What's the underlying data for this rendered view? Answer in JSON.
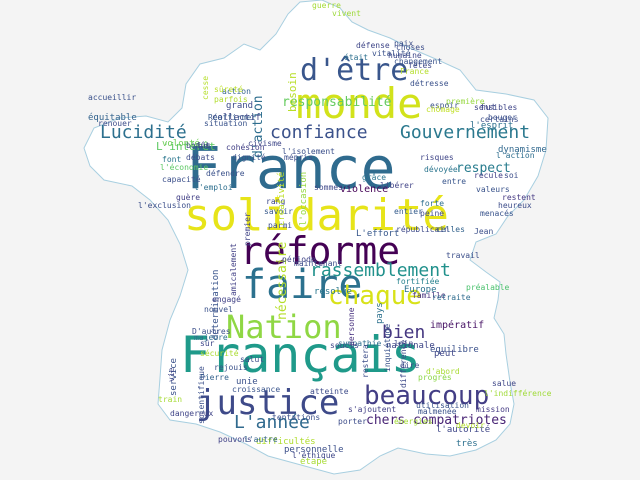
{
  "words": [
    {
      "text": "France",
      "color": "#2f6b8e"
    },
    {
      "text": "solidarité",
      "color": "#e7e419"
    },
    {
      "text": "Français",
      "color": "#1f9a8a"
    },
    {
      "text": "réforme",
      "color": "#440154"
    },
    {
      "text": "monde",
      "color": "#d2e21b"
    },
    {
      "text": "faire",
      "color": "#2c718e"
    },
    {
      "text": "justice",
      "color": "#3e4a89"
    },
    {
      "text": "Nation",
      "color": "#8fd744"
    },
    {
      "text": "d'être",
      "color": "#39568c"
    },
    {
      "text": "chaque",
      "color": "#d8e219"
    },
    {
      "text": "beaucoup",
      "color": "#433e85"
    },
    {
      "text": "rassemblement",
      "color": "#21918c"
    },
    {
      "text": "Gouvernement",
      "color": "#2a788e"
    },
    {
      "text": "confiance",
      "color": "#3b528b"
    },
    {
      "text": "Lucidité",
      "color": "#2d708e"
    },
    {
      "text": "L'année",
      "color": "#306a8e"
    },
    {
      "text": "bien",
      "color": "#453781"
    },
    {
      "text": "chers compatriotes",
      "color": "#482475"
    },
    {
      "text": "responsabilité",
      "color": "#65cb5e"
    },
    {
      "text": "nécessaire",
      "color": "#b5de2b"
    },
    {
      "text": "respect",
      "color": "#287c8e"
    },
    {
      "text": "d'action",
      "color": "#2e6e8e"
    },
    {
      "text": "L'intérêt",
      "color": "#5ec962"
    },
    {
      "text": "collectif",
      "color": "#3f4788"
    },
    {
      "text": "dynamisme",
      "color": "#31688e"
    },
    {
      "text": "l'esprit",
      "color": "#2d708e"
    },
    {
      "text": "équitable",
      "color": "#33638d"
    },
    {
      "text": "accueillir",
      "color": "#3b528b"
    },
    {
      "text": "besoin",
      "color": "#b8de29"
    },
    {
      "text": "grand",
      "color": "#3e4c8a"
    },
    {
      "text": "fut",
      "color": "#3f4889"
    },
    {
      "text": "peine",
      "color": "#3e4a89"
    },
    {
      "text": "fortifiée",
      "color": "#26828e"
    },
    {
      "text": "Europe",
      "color": "#2c728e"
    },
    {
      "text": "préalable",
      "color": "#4ac16d"
    },
    {
      "text": "famille",
      "color": "#46327e"
    },
    {
      "text": "retraite",
      "color": "#2f6c8e"
    },
    {
      "text": "impératif",
      "color": "#471365"
    },
    {
      "text": "équilibre",
      "color": "#3b518b"
    },
    {
      "text": "nationale",
      "color": "#3f4788"
    },
    {
      "text": "pays",
      "color": "#2d718e"
    },
    {
      "text": "soucis",
      "color": "#3e4989"
    },
    {
      "text": "sympathie",
      "color": "#2e6d8e"
    },
    {
      "text": "personne",
      "color": "#46307e"
    },
    {
      "text": "résolue",
      "color": "#2a768e"
    },
    {
      "text": "détermination",
      "color": "#3a548c"
    },
    {
      "text": "violence",
      "color": "#440256"
    },
    {
      "text": "libérer",
      "color": "#414487"
    },
    {
      "text": "sommes",
      "color": "#3f4889"
    },
    {
      "text": "grâce",
      "color": "#2b748e"
    },
    {
      "text": "entre",
      "color": "#39568c"
    },
    {
      "text": "valeurs",
      "color": "#3a538b"
    },
    {
      "text": "recule",
      "color": "#424086"
    },
    {
      "text": "soi",
      "color": "#3d4e8a"
    },
    {
      "text": "entier",
      "color": "#365d8d"
    },
    {
      "text": "forte",
      "color": "#2e6f8e"
    },
    {
      "text": "menacés",
      "color": "#3a548c"
    },
    {
      "text": "restent",
      "color": "#453882"
    },
    {
      "text": "heureux",
      "color": "#3d4d8a"
    },
    {
      "text": "celles",
      "color": "#33638d"
    },
    {
      "text": "républicain",
      "color": "#3e4a89"
    },
    {
      "text": "L'effort",
      "color": "#38588c"
    },
    {
      "text": "travail",
      "color": "#3c4f8a"
    },
    {
      "text": "risques",
      "color": "#404688"
    },
    {
      "text": "dévoyée",
      "color": "#2b758e"
    },
    {
      "text": "unie",
      "color": "#3b528b"
    },
    {
      "text": "croissance",
      "color": "#3a548c"
    },
    {
      "text": "atteinte",
      "color": "#3e4c8a"
    },
    {
      "text": "salue",
      "color": "#3f4788"
    },
    {
      "text": "progrès",
      "color": "#8bd646"
    },
    {
      "text": "mission",
      "color": "#443983"
    },
    {
      "text": "très",
      "color": "#2d708e"
    },
    {
      "text": "l'autorité",
      "color": "#3f4788"
    },
    {
      "text": "difficultés",
      "color": "#b0dd2f"
    },
    {
      "text": "personnelle",
      "color": "#3c4f8a"
    },
    {
      "text": "étape",
      "color": "#a8db34"
    },
    {
      "text": "pouvons",
      "color": "#414287"
    },
    {
      "text": "l'autre",
      "color": "#33638d"
    },
    {
      "text": "porter",
      "color": "#3d4d8a"
    },
    {
      "text": "s'ajoutent",
      "color": "#423f85"
    },
    {
      "text": "dangereux",
      "color": "#404588"
    },
    {
      "text": "Pierre",
      "color": "#33628d"
    },
    {
      "text": "rejouis",
      "color": "#3b528b"
    },
    {
      "text": "sûr",
      "color": "#3f4788"
    },
    {
      "text": "D'autres",
      "color": "#3c508b"
    },
    {
      "text": "majeure",
      "color": "#2e6e8e"
    },
    {
      "text": "nouvel",
      "color": "#3b528b"
    },
    {
      "text": "engagé",
      "color": "#414287"
    },
    {
      "text": "maintenant",
      "color": "#3d4e8a"
    },
    {
      "text": "période",
      "color": "#404588"
    },
    {
      "text": "amicalement",
      "color": "#424086"
    },
    {
      "text": "parmi",
      "color": "#3c508b"
    },
    {
      "text": "premier",
      "color": "#414487"
    },
    {
      "text": "savoir",
      "color": "#38598c"
    },
    {
      "text": "rang",
      "color": "#3e4989"
    },
    {
      "text": "l'occasion",
      "color": "#95d840"
    },
    {
      "text": "créativité",
      "color": "#bddf26"
    },
    {
      "text": "font",
      "color": "#2a768e"
    },
    {
      "text": "débats",
      "color": "#3e4c8a"
    },
    {
      "text": "capacité",
      "color": "#3c508b"
    },
    {
      "text": "défendre",
      "color": "#3b528b"
    },
    {
      "text": "l'emploi",
      "color": "#2e6f8e"
    },
    {
      "text": "bonne",
      "color": "#3f4889"
    },
    {
      "text": "l'économie",
      "color": "#5cc863"
    },
    {
      "text": "l'exclusion",
      "color": "#3c4f8a"
    },
    {
      "text": "volonté",
      "color": "#6ece58"
    },
    {
      "text": "dignité",
      "color": "#3b528b"
    },
    {
      "text": "cohésion",
      "color": "#424086"
    },
    {
      "text": "l'isolement",
      "color": "#3c508b"
    },
    {
      "text": "mépris",
      "color": "#3d4e8a"
    },
    {
      "text": "action",
      "color": "#33638d"
    },
    {
      "text": "parfois",
      "color": "#b2dd2d"
    },
    {
      "text": "Réaffirmer",
      "color": "#38598c"
    },
    {
      "text": "situation",
      "color": "#3a538b"
    },
    {
      "text": "renouer",
      "color": "#3d4d8a"
    },
    {
      "text": "guère",
      "color": "#424086"
    },
    {
      "text": "fût",
      "color": "#3e4989"
    },
    {
      "text": "défense",
      "color": "#3f4788"
    },
    {
      "text": "était",
      "color": "#2d708e"
    },
    {
      "text": "fêtes",
      "color": "#3e4a89"
    },
    {
      "text": "détresse",
      "color": "#3b528b"
    },
    {
      "text": "première",
      "color": "#96d83f"
    },
    {
      "text": "sensibles",
      "color": "#404688"
    },
    {
      "text": "certains",
      "color": "#3d4e8a"
    },
    {
      "text": "bouger",
      "color": "#3c508b"
    },
    {
      "text": "espoir",
      "color": "#3b528b"
    },
    {
      "text": "l'action",
      "color": "#2e6e8e"
    },
    {
      "text": "l'indifférence",
      "color": "#a0da39"
    },
    {
      "text": "civisme",
      "color": "#3f4788"
    },
    {
      "text": "paix",
      "color": "#3c4f8a"
    },
    {
      "text": "changement",
      "color": "#3a538b"
    },
    {
      "text": "humaine",
      "color": "#3f4889"
    },
    {
      "text": "choses",
      "color": "#3d4d8a"
    },
    {
      "text": "vitalité",
      "color": "#3b528b"
    },
    {
      "text": "guerre",
      "color": "#a5db36"
    },
    {
      "text": "vivent",
      "color": "#9dd93b"
    },
    {
      "text": "chômage",
      "color": "#c0df25"
    },
    {
      "text": "France",
      "color": "#b5de2b"
    },
    {
      "text": "sûreté",
      "color": "#bade28"
    },
    {
      "text": "Jean",
      "color": "#3c508b"
    },
    {
      "text": "loin",
      "color": "#3e4a89"
    },
    {
      "text": "peut",
      "color": "#3f4788"
    },
    {
      "text": "dire",
      "color": "#3c4f8a"
    },
    {
      "text": "d'abord",
      "color": "#a9dc33"
    },
    {
      "text": "malmenée",
      "color": "#3b528b"
    },
    {
      "text": "utilisation",
      "color": "#3a548c"
    },
    {
      "text": "énergies",
      "color": "#a2da37"
    },
    {
      "text": "devoir",
      "color": "#b5de2b"
    },
    {
      "text": "l'éthique",
      "color": "#3f4788"
    },
    {
      "text": "tentations",
      "color": "#3c508b"
    },
    {
      "text": "sécurité",
      "color": "#abdc31"
    },
    {
      "text": "salut",
      "color": "#3e4c8a"
    },
    {
      "text": "service",
      "color": "#3b528b"
    },
    {
      "text": "vie",
      "color": "#404688"
    },
    {
      "text": "train",
      "color": "#a6db35"
    },
    {
      "text": "scientifique",
      "color": "#3c508b"
    },
    {
      "text": "difference",
      "color": "#3e4a89"
    },
    {
      "text": "inquiétude",
      "color": "#3a538b"
    },
    {
      "text": "restera",
      "color": "#3d4e8a"
    },
    {
      "text": "cesse",
      "color": "#b5de2b"
    }
  ]
}
